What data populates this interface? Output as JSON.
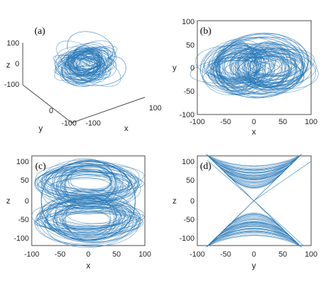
{
  "figure": {
    "color_trace": "#2A7AB8",
    "color_axis": "#444444",
    "color_text": "#222222"
  },
  "chart_data": [
    {
      "type": "line",
      "panel_label": "(a)",
      "projection": "3d",
      "xlabel": "x",
      "ylabel": "y",
      "zlabel": "z",
      "xlim": [
        -100,
        100
      ],
      "ylim": [
        -100,
        100
      ],
      "zlim": [
        -100,
        100
      ],
      "x_ticks": [
        "100"
      ],
      "y_ticks": [
        "0",
        "-100"
      ],
      "z_ticks": [
        "100",
        "0",
        "-100"
      ],
      "extra_tick": "-100",
      "grid": false,
      "series": [
        {
          "values": [
            [
              0,
              0,
              0
            ],
            [
              40,
              30,
              80
            ],
            [
              -40,
              -30,
              70
            ],
            [
              60,
              40,
              -80
            ],
            [
              -60,
              -40,
              -90
            ],
            [
              20,
              60,
              100
            ],
            [
              -20,
              -60,
              90
            ]
          ]
        }
      ]
    },
    {
      "type": "line",
      "panel_label": "(b)",
      "xlabel": "x",
      "ylabel": "y",
      "xlim": [
        -100,
        100
      ],
      "ylim": [
        -100,
        100
      ],
      "x_ticks": [
        "-100",
        "-50",
        "0",
        "50",
        "100"
      ],
      "y_ticks": [
        "100",
        "50",
        "0",
        "-50",
        "-100"
      ],
      "grid": false,
      "series": [
        {
          "x": [
            -78,
            -60,
            -40,
            0,
            40,
            60,
            70,
            55,
            0,
            -55
          ],
          "y": [
            0,
            50,
            35,
            50,
            35,
            50,
            0,
            -45,
            -35,
            -45
          ]
        }
      ]
    },
    {
      "type": "line",
      "panel_label": "(c)",
      "xlabel": "x",
      "ylabel": "z",
      "xlim": [
        -100,
        100
      ],
      "ylim": [
        -120,
        120
      ],
      "x_ticks": [
        "-100",
        "-50",
        "0",
        "50",
        "100"
      ],
      "y_ticks": [
        "100",
        "50",
        "0",
        "-50",
        "-100"
      ],
      "grid": false,
      "series": [
        {
          "x": [
            -70,
            -50,
            0,
            50,
            70,
            50,
            0,
            -50
          ],
          "y": [
            0,
            105,
            120,
            105,
            0,
            -105,
            -110,
            -105
          ]
        }
      ]
    },
    {
      "type": "line",
      "panel_label": "(d)",
      "xlabel": "y",
      "ylabel": "z",
      "xlim": [
        -100,
        100
      ],
      "ylim": [
        -120,
        120
      ],
      "x_ticks": [
        "-100",
        "-50",
        "0",
        "50",
        "100"
      ],
      "y_ticks": [
        "100",
        "50",
        "0",
        "-50",
        "-100"
      ],
      "grid": false,
      "series": [
        {
          "x": [
            -60,
            -40,
            0,
            40,
            60,
            40,
            0,
            -40,
            -60
          ],
          "y": [
            110,
            70,
            0,
            70,
            110,
            -70,
            0,
            -70,
            -110
          ]
        }
      ]
    }
  ]
}
